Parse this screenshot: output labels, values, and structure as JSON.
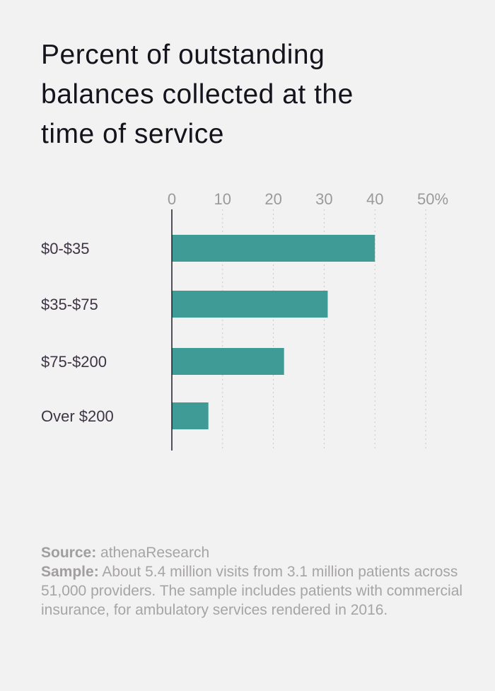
{
  "title_lines": [
    "Percent of outstanding",
    "balances collected at the",
    "time of service"
  ],
  "chart_data": {
    "type": "bar",
    "orientation": "horizontal",
    "categories": [
      "$0-$35",
      "$35-$75",
      "$75-$200",
      "Over $200"
    ],
    "values": [
      40,
      30.7,
      22.1,
      7.2
    ],
    "xlim": [
      0,
      50
    ],
    "ticks": [
      "0",
      "10",
      "20",
      "30",
      "40",
      "50%"
    ],
    "grid": true,
    "bar_color": "#3f9b95"
  },
  "footer": {
    "source_label": "Source:",
    "source_value": "athenaResearch",
    "sample_label": "Sample:",
    "sample_value": "About 5.4 million visits from 3.1 million patients across 51,000 providers. The sample includes patients with commercial insurance, for ambulatory services rendered in 2016."
  }
}
